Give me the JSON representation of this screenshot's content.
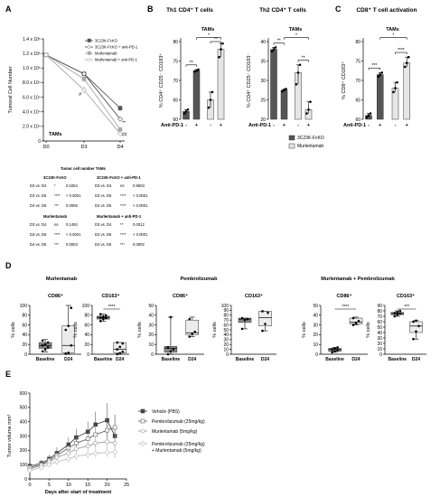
{
  "panels": {
    "A": "A",
    "B": "B",
    "C": "C",
    "D": "D",
    "E": "E"
  },
  "colors": {
    "dark": "#555555",
    "light": "#e6e6e6",
    "mid": "#a8a8a8",
    "line_grey": "#888888",
    "black": "#000000"
  },
  "chart_data": [
    {
      "id": "A",
      "type": "line",
      "title": "",
      "ylabel": "Tumoral Cell Number",
      "xlabel": "",
      "annotation": "TAMs",
      "categories": [
        "D0",
        "D3",
        "D4"
      ],
      "yticks": [
        "0",
        "2.0 x 10⁴",
        "4.0 x 10⁴",
        "6.0 x 10⁴",
        "8.0 x 10⁴",
        "1.0 x 10⁵",
        "1.2 x 10⁵",
        "1.4 x 10⁵"
      ],
      "ylim": [
        0,
        140000
      ],
      "series": [
        {
          "name": "3C23K-FcKO",
          "values": [
            118000,
            92000,
            45000
          ],
          "err": [
            0,
            3000,
            4000
          ]
        },
        {
          "name": "3C23K-FcKO + anti-PD-1",
          "values": [
            118000,
            92000,
            30000
          ],
          "err": [
            0,
            3000,
            3000
          ]
        },
        {
          "name": "Murlentamab",
          "values": [
            118000,
            85000,
            16000
          ],
          "err": [
            0,
            4000,
            2000
          ]
        },
        {
          "name": "Murlentamab + anti-PD-1",
          "values": [
            118000,
            70000,
            10000
          ],
          "err": [
            0,
            5000,
            2000
          ]
        }
      ],
      "marks": [
        "#",
        "**",
        "##"
      ],
      "stats_table": {
        "title": "Tumor cell number TAMs",
        "groups": [
          {
            "left_head": "3C23K-FcKO",
            "right_head": "3C23K-FcKO + anti-PD-1",
            "rows": [
              [
                "D3 vs. D4",
                "*",
                "0.0254",
                "D3 vs. D4",
                "ns",
                "0.9603"
              ],
              [
                "D3 vs. D5",
                "****",
                "< 0.0001",
                "D3 vs. D5",
                "****",
                "< 0.0001"
              ],
              [
                "D4 vs. D5",
                "***",
                "0.0006",
                "D4 vs. D5",
                "****",
                "< 0.0001"
              ]
            ]
          },
          {
            "left_head": "Murlentamab",
            "right_head": "Murlentamab + anti-PD-1",
            "rows": [
              [
                "D3 vs. D4",
                "ns",
                "0.1492",
                "D3 vs. D4",
                "**",
                "0.0012"
              ],
              [
                "D3 vs. D5",
                "****",
                "< 0.0001",
                "D3 vs. D5",
                "****",
                "< 0.0001"
              ],
              [
                "D4 vs. D5",
                "***",
                "0.0003",
                "D4 vs. D5",
                "***",
                "0.0002"
              ]
            ]
          }
        ]
      }
    },
    {
      "id": "B1",
      "type": "bar",
      "title": "Th1 CD4⁺ T cells",
      "subtitle": "TAMs",
      "ylabel": "% CD4⁺ CD25⁻ CD183⁺",
      "yticks": [
        "60",
        "65",
        "70",
        "75",
        "80"
      ],
      "ylim": [
        60,
        80
      ],
      "bars": [
        {
          "group": "3C23K-FcKO",
          "pd1": "-",
          "value": 62,
          "points": [
            61.5,
            62,
            62.5
          ]
        },
        {
          "group": "3C23K-FcKO",
          "pd1": "+",
          "value": 72.5,
          "points": [
            72.3,
            72.5,
            72.8
          ]
        },
        {
          "group": "Murlentamab",
          "pd1": "-",
          "value": 65,
          "points": [
            63,
            65,
            67
          ]
        },
        {
          "group": "Murlentamab",
          "pd1": "+",
          "value": 78,
          "points": [
            76,
            78,
            79.5
          ]
        }
      ],
      "sig": [
        "**",
        "*",
        "**"
      ],
      "xlabel": "Anti-PD-1"
    },
    {
      "id": "B2",
      "type": "bar",
      "title": "Th2 CD4⁺ T cells",
      "subtitle": "TAMs",
      "ylabel": "% CD4⁺ CD25⁻ CD183⁻",
      "yticks": [
        "20",
        "25",
        "30",
        "35",
        "40"
      ],
      "ylim": [
        20,
        40
      ],
      "bars": [
        {
          "group": "3C23K-FcKO",
          "pd1": "-",
          "value": 38,
          "points": [
            37.5,
            38,
            38.5
          ]
        },
        {
          "group": "3C23K-FcKO",
          "pd1": "+",
          "value": 27.5,
          "points": [
            27.2,
            27.5,
            27.8
          ]
        },
        {
          "group": "Murlentamab",
          "pd1": "-",
          "value": 32,
          "points": [
            29,
            32,
            34
          ]
        },
        {
          "group": "Murlentamab",
          "pd1": "+",
          "value": 22.5,
          "points": [
            21.5,
            22.5,
            24.5
          ]
        }
      ],
      "sig": [
        "**",
        "*",
        "**"
      ],
      "xlabel": "Anti-PD-1"
    },
    {
      "id": "C",
      "type": "bar",
      "title": "CD8⁺ T cell activation",
      "subtitle": "TAMs",
      "ylabel": "% CD8⁺ CD183⁺",
      "yticks": [
        "60",
        "65",
        "70",
        "75",
        "80"
      ],
      "ylim": [
        60,
        80
      ],
      "bars": [
        {
          "group": "3C23K-FcKO",
          "pd1": "-",
          "value": 61,
          "points": [
            60.5,
            61,
            61.5
          ]
        },
        {
          "group": "3C23K-FcKO",
          "pd1": "+",
          "value": 71.5,
          "points": [
            71,
            71.5,
            72
          ]
        },
        {
          "group": "Murlentamab",
          "pd1": "-",
          "value": 68,
          "points": [
            67,
            68,
            69.5
          ]
        },
        {
          "group": "Murlentamab",
          "pd1": "+",
          "value": 74.5,
          "points": [
            73.5,
            74.5,
            76
          ]
        }
      ],
      "sig": [
        "***",
        "*",
        "****"
      ],
      "xlabel": "Anti-PD-1"
    },
    {
      "id": "BC_legend",
      "type": "legend",
      "items": [
        {
          "name": "3C23K-FcKO",
          "color": "#555555"
        },
        {
          "name": "Murlentamab",
          "color": "#e6e6e6"
        }
      ]
    },
    {
      "id": "D",
      "type": "box",
      "ylabel": "% cells",
      "categories": [
        "Baseline",
        "D24"
      ],
      "groups": [
        {
          "title": "Murlentamab",
          "plots": [
            {
              "title": "CD86⁺",
              "ylim": [
                0,
                100
              ],
              "yticks": [
                "0",
                "20",
                "40",
                "60",
                "80",
                "100"
              ],
              "boxes": [
                {
                  "min": 5,
                  "q1": 12,
                  "med": 18,
                  "q3": 24,
                  "max": 30,
                  "points": [
                    6,
                    10,
                    14,
                    18,
                    20,
                    24,
                    28
                  ]
                },
                {
                  "min": 0,
                  "q1": 3,
                  "med": 18,
                  "q3": 58,
                  "max": 100,
                  "points": [
                    1,
                    3,
                    18,
                    50,
                    58,
                    95
                  ]
                }
              ],
              "sig": ""
            },
            {
              "title": "CD163⁺",
              "ylim": [
                0,
                100
              ],
              "yticks": [
                "0",
                "20",
                "40",
                "60",
                "80",
                "100"
              ],
              "boxes": [
                {
                  "min": 68,
                  "q1": 72,
                  "med": 75,
                  "q3": 78,
                  "max": 82,
                  "points": [
                    68,
                    72,
                    74,
                    75,
                    77,
                    79,
                    82
                  ]
                },
                {
                  "min": 0,
                  "q1": 3,
                  "med": 10,
                  "q3": 24,
                  "max": 24,
                  "points": [
                    0,
                    2,
                    5,
                    10,
                    15,
                    22,
                    24
                  ]
                }
              ],
              "sig": "****"
            }
          ]
        },
        {
          "title": "Pembrolizumab",
          "plots": [
            {
              "title": "CD86⁺",
              "ylim": [
                0,
                50
              ],
              "yticks": [
                "0",
                "10",
                "20",
                "30",
                "40",
                "50"
              ],
              "boxes": [
                {
                  "min": 0,
                  "q1": 2,
                  "med": 6,
                  "q3": 8,
                  "max": 38,
                  "points": [
                    0,
                    3,
                    5,
                    7,
                    38
                  ]
                },
                {
                  "min": 18,
                  "q1": 20,
                  "med": 22,
                  "q3": 35,
                  "max": 38,
                  "points": [
                    18,
                    21,
                    23,
                    36
                  ]
                }
              ],
              "sig": ""
            },
            {
              "title": "CD163⁺",
              "ylim": [
                0,
                100
              ],
              "yticks": [
                "0",
                "10",
                "20",
                "30",
                "40",
                "50",
                "60",
                "70",
                "80",
                "90",
                "100"
              ],
              "boxes": [
                {
                  "min": 52,
                  "q1": 65,
                  "med": 72,
                  "q3": 74,
                  "max": 74,
                  "points": [
                    52,
                    70,
                    72,
                    74
                  ]
                },
                {
                  "min": 48,
                  "q1": 58,
                  "med": 75,
                  "q3": 88,
                  "max": 88,
                  "points": [
                    48,
                    62,
                    85,
                    88
                  ]
                }
              ],
              "sig": ""
            }
          ]
        },
        {
          "title": "Murlentamab + Pembrolizumab",
          "plots": [
            {
              "title": "CD86⁺",
              "ylim": [
                0,
                50
              ],
              "yticks": [
                "0",
                "10",
                "20",
                "30",
                "40",
                "50"
              ],
              "boxes": [
                {
                  "min": 2,
                  "q1": 3,
                  "med": 5,
                  "q3": 6,
                  "max": 7,
                  "points": [
                    2,
                    3,
                    4,
                    5,
                    6,
                    7
                  ]
                },
                {
                  "min": 30,
                  "q1": 31,
                  "med": 33,
                  "q3": 37,
                  "max": 38,
                  "points": [
                    30,
                    32,
                    34,
                    37
                  ]
                }
              ],
              "sig": "****"
            },
            {
              "title": "CD163⁺",
              "ylim": [
                0,
                90
              ],
              "yticks": [
                "0",
                "10",
                "20",
                "30",
                "40",
                "50",
                "60",
                "70",
                "80",
                "90"
              ],
              "boxes": [
                {
                  "min": 70,
                  "q1": 73,
                  "med": 75,
                  "q3": 77,
                  "max": 80,
                  "points": [
                    70,
                    73,
                    75,
                    76,
                    78,
                    80
                  ]
                },
                {
                  "min": 28,
                  "q1": 40,
                  "med": 52,
                  "q3": 60,
                  "max": 62,
                  "points": [
                    28,
                    42,
                    52,
                    60,
                    62
                  ]
                }
              ],
              "sig": "***"
            }
          ]
        }
      ]
    },
    {
      "id": "E",
      "type": "line",
      "xlabel": "Days after start of treatment",
      "ylabel": "Tumor volume mm³",
      "xlim": [
        0,
        25
      ],
      "ylim": [
        0,
        600
      ],
      "xticks": [
        "0",
        "5",
        "10",
        "15",
        "20",
        "25"
      ],
      "yticks": [
        "0",
        "100",
        "200",
        "300",
        "400",
        "500",
        "600"
      ],
      "x": [
        0,
        3,
        5,
        7,
        10,
        12,
        15,
        17,
        20,
        22
      ],
      "series": [
        {
          "name": "Vehicle (PBS)",
          "marker": "square-filled",
          "values": [
            90,
            110,
            140,
            180,
            240,
            290,
            330,
            380,
            410,
            300
          ],
          "err": [
            20,
            25,
            30,
            40,
            50,
            60,
            70,
            90,
            120,
            150
          ]
        },
        {
          "name": "Pembrolizumab (25mg/kg)",
          "marker": "square-open",
          "values": [
            80,
            100,
            130,
            165,
            215,
            250,
            280,
            310,
            340,
            360
          ],
          "err": [
            20,
            25,
            30,
            35,
            40,
            50,
            60,
            70,
            80,
            90
          ]
        },
        {
          "name": "Murlentamab (5mg/kg)",
          "marker": "circle-open",
          "values": [
            70,
            95,
            120,
            150,
            180,
            210,
            230,
            250,
            260,
            250
          ],
          "err": [
            20,
            25,
            25,
            30,
            35,
            40,
            45,
            50,
            55,
            60
          ]
        },
        {
          "name": "Pembrolizumab (25mg/kg)\n+ Murlentamab (5mg/kg)",
          "marker": "diamond-open",
          "values": [
            60,
            80,
            100,
            120,
            140,
            160,
            170,
            180,
            185,
            190
          ],
          "err": [
            15,
            20,
            20,
            25,
            25,
            30,
            30,
            35,
            35,
            40
          ]
        }
      ]
    }
  ]
}
